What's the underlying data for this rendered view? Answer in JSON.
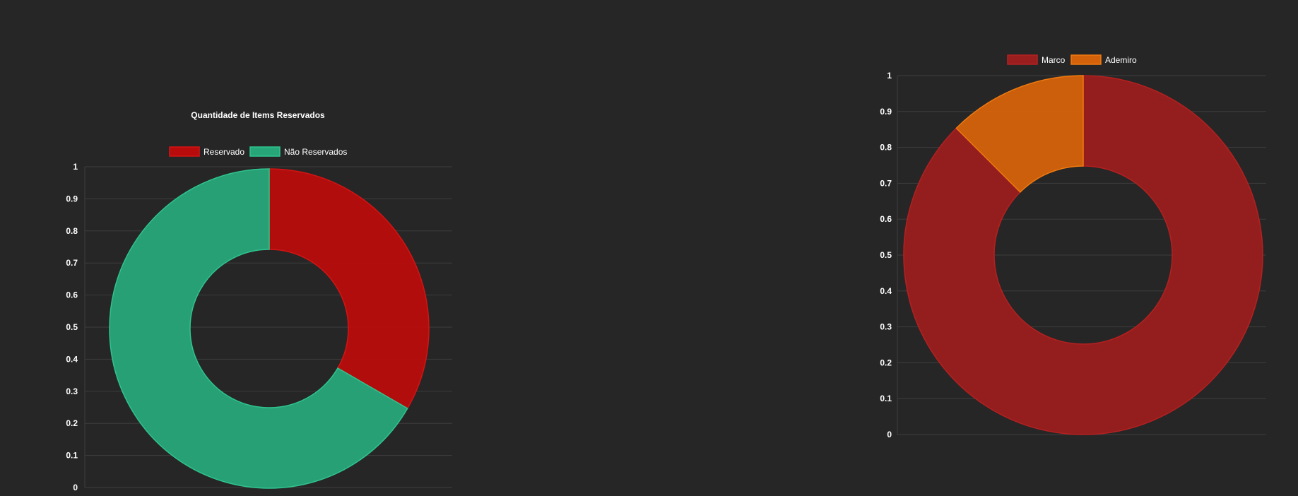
{
  "colors": {
    "background": "#262626",
    "grid": "#3d3d3d",
    "text": "#ffffff"
  },
  "chart_data": [
    {
      "type": "doughnut",
      "title": "Quantidade de Items Reservados",
      "legend_position": "top",
      "labels": [
        "Reservado",
        "Não Reservados"
      ],
      "values": [
        1,
        2
      ],
      "colors": [
        "#b80c0c",
        "#27a67a"
      ],
      "border_colors": [
        "#d41414",
        "#2fc48e"
      ],
      "y_ticks": [
        "1",
        "0.9",
        "0.8",
        "0.7",
        "0.6",
        "0.5",
        "0.4",
        "0.3",
        "0.2",
        "0.1",
        "0"
      ],
      "ylim": [
        0,
        1
      ],
      "grid": true
    },
    {
      "type": "doughnut",
      "title": "",
      "legend_position": "top",
      "labels": [
        "Marco",
        "Ademiro"
      ],
      "values": [
        7,
        1
      ],
      "colors": [
        "#9a1e1e",
        "#d4620a"
      ],
      "border_colors": [
        "#b52020",
        "#f07a10"
      ],
      "y_ticks": [
        "1",
        "0.9",
        "0.8",
        "0.7",
        "0.6",
        "0.5",
        "0.4",
        "0.3",
        "0.2",
        "0.1",
        "0"
      ],
      "ylim": [
        0,
        1
      ],
      "grid": true
    }
  ]
}
